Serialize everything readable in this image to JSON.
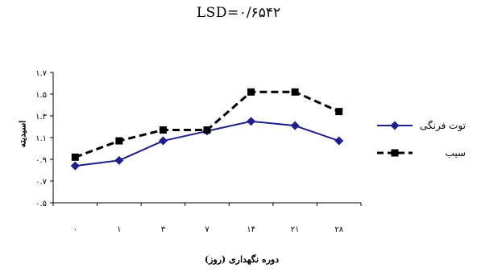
{
  "chart_data": {
    "type": "line",
    "title": "LSD=۰/۶۵۴۲",
    "xlabel": "دوره نگهداری (روز)",
    "ylabel": "اسیدیته",
    "categories": [
      "۰",
      "۱",
      "۳",
      "۷",
      "۱۴",
      "۲۱",
      "۲۸"
    ],
    "yticks": [
      0.5,
      0.7,
      0.9,
      1.1,
      1.3,
      1.5,
      1.7
    ],
    "ytick_labels": [
      "۰.۵",
      "۰.۷",
      "۰.۹",
      "۱.۱",
      "۱.۳",
      "۱.۵",
      "۱.۷"
    ],
    "ylim": [
      0.5,
      1.7
    ],
    "legend_position": "right",
    "grid": false,
    "series": [
      {
        "name": "توت فرنگی",
        "values": [
          0.84,
          0.89,
          1.07,
          1.16,
          1.25,
          1.21,
          1.07
        ],
        "color": "#1e1e8c",
        "marker": "diamond",
        "line_style": "solid"
      },
      {
        "name": "سیب",
        "values": [
          0.92,
          1.07,
          1.17,
          1.17,
          1.52,
          1.52,
          1.34
        ],
        "color": "#000000",
        "marker": "square",
        "line_style": "dashed"
      }
    ]
  }
}
